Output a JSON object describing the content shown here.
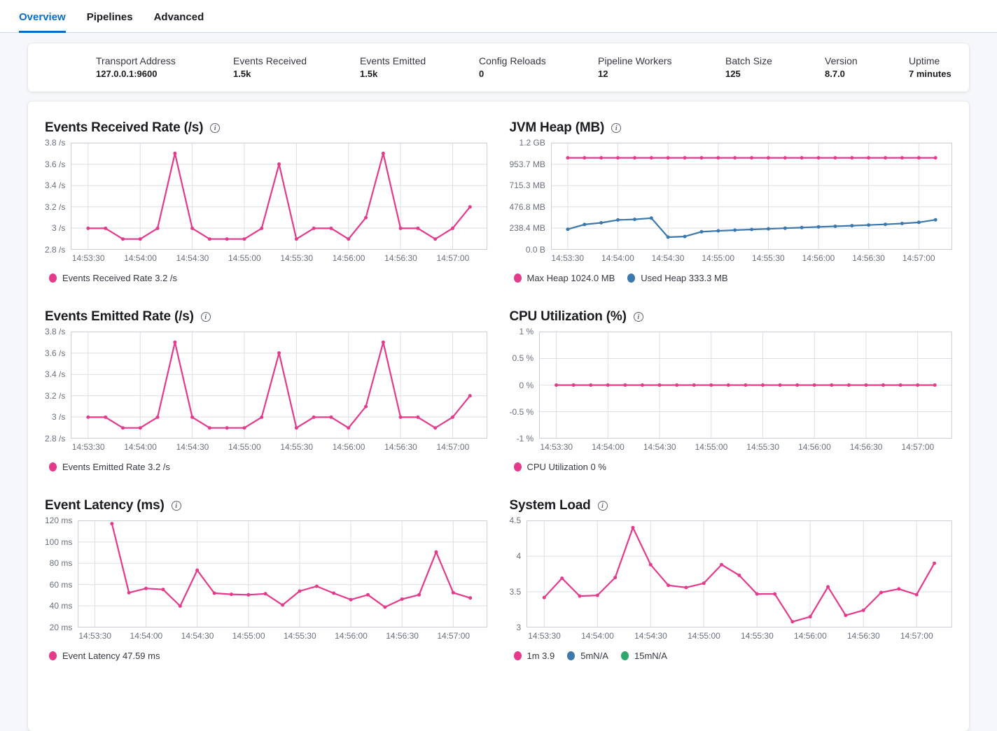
{
  "tabs": [
    {
      "label": "Overview",
      "active": true
    },
    {
      "label": "Pipelines",
      "active": false
    },
    {
      "label": "Advanced",
      "active": false
    }
  ],
  "summary": {
    "items": [
      {
        "label": "Transport Address",
        "value": "127.0.0.1:9600"
      },
      {
        "label": "Events Received",
        "value": "1.5k"
      },
      {
        "label": "Events Emitted",
        "value": "1.5k"
      },
      {
        "label": "Config Reloads",
        "value": "0"
      },
      {
        "label": "Pipeline Workers",
        "value": "12"
      },
      {
        "label": "Batch Size",
        "value": "125"
      },
      {
        "label": "Version",
        "value": "8.7.0"
      },
      {
        "label": "Uptime",
        "value": "7 minutes"
      }
    ]
  },
  "colors": {
    "accent_blue": "#0b6cc8",
    "series_pink": "#e5398b",
    "series_blue": "#3c78ab",
    "series_green": "#2ea76a",
    "grid_line": "#dcdfe4",
    "plot_border": "#c9ced6",
    "axis_text": "#69707d"
  },
  "x_axis": {
    "start_time": "14:53:30",
    "point_interval_seconds": 10,
    "tick_labels": [
      "14:53:30",
      "14:54:00",
      "14:54:30",
      "14:55:00",
      "14:55:30",
      "14:56:00",
      "14:56:30",
      "14:57:00"
    ]
  },
  "chart_data": [
    {
      "type": "line",
      "title": "Events Received Rate (/s)",
      "y_ticks": [
        "3.8 /s",
        "3.6 /s",
        "3.4 /s",
        "3.2 /s",
        "3 /s",
        "2.8 /s"
      ],
      "y_max": 3.8,
      "y_min": 2.8,
      "series": [
        {
          "name": "Events Received Rate",
          "color": "#e5398b",
          "start_offset_s": 0,
          "values": [
            3,
            3,
            2.9,
            2.9,
            3,
            3.7,
            3,
            2.9,
            2.9,
            2.9,
            3,
            3.6,
            2.9,
            3,
            3,
            2.9,
            3.1,
            3.7,
            3,
            3,
            2.9,
            3,
            3.2
          ]
        }
      ],
      "legend": [
        {
          "color": "#e5398b",
          "label": "Events Received Rate 3.2 /s"
        }
      ]
    },
    {
      "type": "line",
      "title": "JVM Heap (MB)",
      "y_ticks": [
        "1.2 GB",
        "953.7 MB",
        "715.3 MB",
        "476.8 MB",
        "238.4 MB",
        "0.0 B"
      ],
      "y_max": 1192,
      "y_min": 0,
      "series": [
        {
          "name": "Max Heap",
          "color": "#e5398b",
          "start_offset_s": 0,
          "values": [
            1024,
            1024,
            1024,
            1024,
            1024,
            1024,
            1024,
            1024,
            1024,
            1024,
            1024,
            1024,
            1024,
            1024,
            1024,
            1024,
            1024,
            1024,
            1024,
            1024,
            1024,
            1024,
            1024
          ]
        },
        {
          "name": "Used Heap",
          "color": "#3c78ab",
          "start_offset_s": 0,
          "values": [
            228,
            281,
            300,
            332,
            338,
            352,
            140,
            147,
            200,
            210,
            218,
            226,
            233,
            240,
            247,
            254,
            261,
            268,
            275,
            283,
            292,
            305,
            333.3
          ]
        }
      ],
      "legend": [
        {
          "color": "#e5398b",
          "label": "Max Heap 1024.0 MB"
        },
        {
          "color": "#3c78ab",
          "label": "Used Heap 333.3 MB"
        }
      ]
    },
    {
      "type": "line",
      "title": "Events Emitted Rate (/s)",
      "y_ticks": [
        "3.8 /s",
        "3.6 /s",
        "3.4 /s",
        "3.2 /s",
        "3 /s",
        "2.8 /s"
      ],
      "y_max": 3.8,
      "y_min": 2.8,
      "series": [
        {
          "name": "Events Emitted Rate",
          "color": "#e5398b",
          "start_offset_s": 0,
          "values": [
            3,
            3,
            2.9,
            2.9,
            3,
            3.7,
            3,
            2.9,
            2.9,
            2.9,
            3,
            3.6,
            2.9,
            3,
            3,
            2.9,
            3.1,
            3.7,
            3,
            3,
            2.9,
            3,
            3.2
          ]
        }
      ],
      "legend": [
        {
          "color": "#e5398b",
          "label": "Events Emitted Rate 3.2 /s"
        }
      ]
    },
    {
      "type": "line",
      "title": "CPU Utilization (%)",
      "y_ticks": [
        "1 %",
        "0.5 %",
        "0 %",
        "-0.5 %",
        "-1 %"
      ],
      "y_max": 1,
      "y_min": -1,
      "series": [
        {
          "name": "CPU Utilization",
          "color": "#e5398b",
          "start_offset_s": 0,
          "values": [
            0,
            0,
            0,
            0,
            0,
            0,
            0,
            0,
            0,
            0,
            0,
            0,
            0,
            0,
            0,
            0,
            0,
            0,
            0,
            0,
            0,
            0,
            0
          ]
        }
      ],
      "legend": [
        {
          "color": "#e5398b",
          "label": "CPU Utilization 0 %"
        }
      ]
    },
    {
      "type": "line",
      "title": "Event Latency (ms)",
      "y_ticks": [
        "120 ms",
        "100 ms",
        "80 ms",
        "60 ms",
        "40 ms",
        "20 ms"
      ],
      "y_max": 120,
      "y_min": 20,
      "series": [
        {
          "name": "Event Latency",
          "color": "#e5398b",
          "start_offset_s": 10,
          "values": [
            117,
            52.5,
            56.5,
            55.5,
            40,
            73.5,
            52,
            51,
            50.5,
            51.5,
            41,
            54,
            58.5,
            52,
            46,
            50.5,
            39,
            46.5,
            50.5,
            90.5,
            52.5,
            47.59
          ]
        }
      ],
      "legend": [
        {
          "color": "#e5398b",
          "label": "Event Latency 47.59 ms"
        }
      ]
    },
    {
      "type": "line",
      "title": "System Load",
      "y_ticks": [
        "4.5",
        "4",
        "3.5",
        "3"
      ],
      "y_max": 4.5,
      "y_min": 3,
      "series": [
        {
          "name": "1m",
          "color": "#e5398b",
          "start_offset_s": 0,
          "values": [
            3.42,
            3.69,
            3.44,
            3.45,
            3.7,
            4.4,
            3.88,
            3.59,
            3.56,
            3.62,
            3.88,
            3.73,
            3.47,
            3.47,
            3.08,
            3.15,
            3.57,
            3.17,
            3.24,
            3.49,
            3.54,
            3.46,
            3.9
          ]
        }
      ],
      "legend": [
        {
          "color": "#e5398b",
          "label": "1m 3.9"
        },
        {
          "color": "#3c78ab",
          "label": "5mN/A"
        },
        {
          "color": "#2ea76a",
          "label": "15mN/A"
        }
      ]
    }
  ]
}
